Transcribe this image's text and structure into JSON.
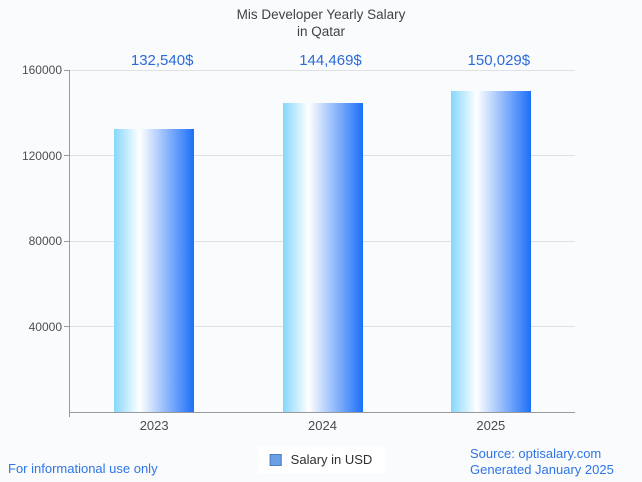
{
  "title": {
    "line1": "Mis Developer Yearly Salary",
    "line2": "in Qatar"
  },
  "chart_data": {
    "type": "bar",
    "title": "Mis Developer Yearly Salary in Qatar",
    "categories": [
      "2023",
      "2024",
      "2025"
    ],
    "series": [
      {
        "name": "Salary in USD",
        "values": [
          132540,
          144469,
          150029
        ]
      }
    ],
    "value_labels": [
      "132,540$",
      "144,469$",
      "150,029$"
    ],
    "xlabel": "",
    "ylabel": "",
    "ylim": [
      0,
      160000
    ],
    "yticks": [
      40000,
      80000,
      120000,
      160000
    ],
    "grid": true,
    "legend_position": "bottom"
  },
  "legend": {
    "label": "Salary in USD"
  },
  "footer": {
    "disclaimer": "For informational use only",
    "source_line1": "Source: optisalary.com",
    "source_line2": "Generated January 2025"
  },
  "colors": {
    "background": "#fafbfd",
    "bar_gradient": [
      "#85d7fb",
      "#ffffff",
      "#1c6ff8"
    ],
    "bar_gradient_white_stop": "32%",
    "value_label": "#2b6bd9",
    "footer_link": "#2e75e8",
    "grid": "#e0e1e4",
    "axis": "#9b9b9b",
    "title": "#424242",
    "tick_text": "#4f4f4f",
    "legend_marker_fill": "#6aa1e5",
    "legend_marker_border": "#4c7dbf"
  }
}
